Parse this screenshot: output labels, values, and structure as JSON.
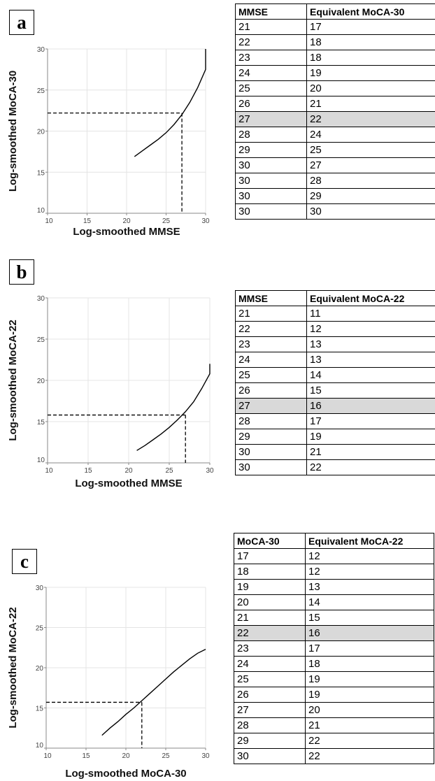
{
  "panels": [
    {
      "label": "a",
      "table": {
        "headers": [
          "MMSE",
          "Equivalent MoCA-30"
        ],
        "rows": [
          [
            "21",
            "17"
          ],
          [
            "22",
            "18"
          ],
          [
            "23",
            "18"
          ],
          [
            "24",
            "19"
          ],
          [
            "25",
            "20"
          ],
          [
            "26",
            "21"
          ],
          [
            "27",
            "22"
          ],
          [
            "28",
            "24"
          ],
          [
            "29",
            "25"
          ],
          [
            "30",
            "27"
          ],
          [
            "30",
            "28"
          ],
          [
            "30",
            "29"
          ],
          [
            "30",
            "30"
          ]
        ],
        "highlight_row": 6
      }
    },
    {
      "label": "b",
      "table": {
        "headers": [
          "MMSE",
          "Equivalent MoCA-22"
        ],
        "rows": [
          [
            "21",
            "11"
          ],
          [
            "22",
            "12"
          ],
          [
            "23",
            "13"
          ],
          [
            "24",
            "13"
          ],
          [
            "25",
            "14"
          ],
          [
            "26",
            "15"
          ],
          [
            "27",
            "16"
          ],
          [
            "28",
            "17"
          ],
          [
            "29",
            "19"
          ],
          [
            "30",
            "21"
          ],
          [
            "30",
            "22"
          ]
        ],
        "highlight_row": 6
      }
    },
    {
      "label": "c",
      "table": {
        "headers": [
          "MoCA-30",
          "Equivalent MoCA-22"
        ],
        "rows": [
          [
            "17",
            "12"
          ],
          [
            "18",
            "12"
          ],
          [
            "19",
            "13"
          ],
          [
            "20",
            "14"
          ],
          [
            "21",
            "15"
          ],
          [
            "22",
            "16"
          ],
          [
            "23",
            "17"
          ],
          [
            "24",
            "18"
          ],
          [
            "25",
            "19"
          ],
          [
            "26",
            "19"
          ],
          [
            "27",
            "20"
          ],
          [
            "28",
            "21"
          ],
          [
            "29",
            "22"
          ],
          [
            "30",
            "22"
          ]
        ],
        "highlight_row": 5
      }
    }
  ],
  "chart_data": [
    {
      "type": "line",
      "xlabel": "Log-smoothed MMSE",
      "ylabel": "Log-smoothed MoCA-30",
      "xlim": [
        10,
        30
      ],
      "ylim": [
        10,
        30
      ],
      "xticks": [
        "10",
        "15",
        "20",
        "25",
        "30"
      ],
      "yticks": [
        "10",
        "15",
        "20",
        "25",
        "30"
      ],
      "grid": true,
      "series": [
        {
          "x": [
            21,
            22,
            23,
            24,
            25,
            26,
            27,
            28,
            29,
            30,
            30
          ],
          "y": [
            16.9,
            17.6,
            18.3,
            19.0,
            19.8,
            20.8,
            22.0,
            23.5,
            25.3,
            27.5,
            30
          ]
        }
      ],
      "reference": {
        "x": 27,
        "y": 22.2
      }
    },
    {
      "type": "line",
      "xlabel": "Log-smoothed MMSE",
      "ylabel": "Log-smoothed MoCA-22",
      "xlim": [
        10,
        30
      ],
      "ylim": [
        10,
        30
      ],
      "xticks": [
        "10",
        "15",
        "20",
        "25",
        "30"
      ],
      "yticks": [
        "10",
        "15",
        "20",
        "25",
        "30"
      ],
      "grid": true,
      "series": [
        {
          "x": [
            21,
            22,
            23,
            24,
            25,
            26,
            27,
            28,
            29,
            30,
            30
          ],
          "y": [
            11.5,
            12.1,
            12.8,
            13.5,
            14.3,
            15.2,
            16.2,
            17.4,
            19.0,
            20.8,
            22
          ]
        }
      ],
      "reference": {
        "x": 27,
        "y": 15.8
      }
    },
    {
      "type": "line",
      "xlabel": "Log-smoothed MoCA-30",
      "ylabel": "Log-smoothed MoCA-22",
      "xlim": [
        10,
        30
      ],
      "ylim": [
        10,
        30
      ],
      "xticks": [
        "10",
        "15",
        "20",
        "25",
        "30"
      ],
      "yticks": [
        "10",
        "15",
        "20",
        "25",
        "30"
      ],
      "grid": true,
      "series": [
        {
          "x": [
            17,
            18,
            19,
            20,
            21,
            22,
            23,
            24,
            25,
            26,
            27,
            28,
            29,
            30
          ],
          "y": [
            11.6,
            12.5,
            13.3,
            14.2,
            15.0,
            15.9,
            16.8,
            17.7,
            18.6,
            19.5,
            20.3,
            21.1,
            21.8,
            22.3
          ]
        }
      ],
      "reference": {
        "x": 22,
        "y": 15.7
      }
    }
  ]
}
